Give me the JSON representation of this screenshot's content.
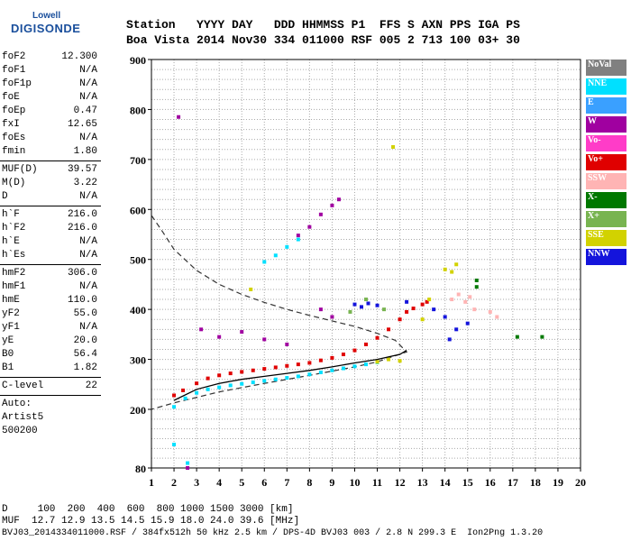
{
  "logo": {
    "top": "Lowell",
    "main": "DIGISONDE"
  },
  "header": {
    "line1": "Station   YYYY DAY   DDD HHMMSS P1  FFS S AXN PPS IGA PS",
    "line2": "Boa Vista 2014 Nov30 334 011000 RSF 005 2 713 100 03+ 30"
  },
  "params": {
    "group1": [
      {
        "name": "foF2",
        "value": "12.300"
      },
      {
        "name": "foF1",
        "value": "N/A"
      },
      {
        "name": "foF1p",
        "value": "N/A"
      },
      {
        "name": "foE",
        "value": "N/A"
      },
      {
        "name": "foEp",
        "value": "0.47"
      },
      {
        "name": "fxI",
        "value": "12.65"
      },
      {
        "name": "foEs",
        "value": "N/A"
      },
      {
        "name": "fmin",
        "value": "1.80"
      }
    ],
    "group2": [
      {
        "name": "MUF(D)",
        "value": "39.57"
      },
      {
        "name": "M(D)",
        "value": "3.22"
      },
      {
        "name": "D",
        "value": "N/A"
      }
    ],
    "group3": [
      {
        "name": "h`F",
        "value": "216.0"
      },
      {
        "name": "h`F2",
        "value": "216.0"
      },
      {
        "name": "h`E",
        "value": "N/A"
      },
      {
        "name": "h`Es",
        "value": "N/A"
      }
    ],
    "group4": [
      {
        "name": "hmF2",
        "value": "306.0"
      },
      {
        "name": "hmF1",
        "value": "N/A"
      },
      {
        "name": "hmE",
        "value": "110.0"
      },
      {
        "name": "yF2",
        "value": "55.0"
      },
      {
        "name": "yF1",
        "value": "N/A"
      },
      {
        "name": "yE",
        "value": "20.0"
      },
      {
        "name": "B0",
        "value": "56.4"
      },
      {
        "name": "B1",
        "value": "1.82"
      }
    ],
    "group5": [
      {
        "name": "C-level",
        "value": "22"
      }
    ],
    "auto": [
      "Auto:",
      "Artist5",
      "500200"
    ]
  },
  "legend": [
    {
      "label": "NoVal",
      "bg": "#808080",
      "fg": "#ffffff"
    },
    {
      "label": "NNE",
      "bg": "#00e0ff",
      "fg": "#ffffff"
    },
    {
      "label": "E",
      "bg": "#3aa0ff",
      "fg": "#ffffff"
    },
    {
      "label": "W",
      "bg": "#a000a0",
      "fg": "#ffffff"
    },
    {
      "label": "Vo-",
      "bg": "#ff3cc8",
      "fg": "#ffffff"
    },
    {
      "label": "Vo+",
      "bg": "#e00000",
      "fg": "#ffffff"
    },
    {
      "label": "SSW",
      "bg": "#ffb4b4",
      "fg": "#ffffff"
    },
    {
      "label": "X-",
      "bg": "#007800",
      "fg": "#ffffff"
    },
    {
      "label": "X+",
      "bg": "#78b450",
      "fg": "#ffffff"
    },
    {
      "label": "SSE",
      "bg": "#d2d200",
      "fg": "#ffffff"
    },
    {
      "label": "NNW",
      "bg": "#1414dc",
      "fg": "#ffffff"
    }
  ],
  "footer": {
    "line1": "D     100  200  400  600  800 1000 1500 3000 [km]",
    "line2": "MUF  12.7 12.9 13.5 14.5 15.9 18.0 24.0 39.6 [MHz]",
    "line3": "BVJ03_2014334011000.RSF / 384fx512h 50 kHz 2.5 km / DPS-4D BVJ03 003 / 2.8 N 299.3 E  Ion2Png 1.3.20"
  },
  "chart_data": {
    "type": "scatter",
    "title": "",
    "xlabel": "",
    "ylabel": "",
    "xlim": [
      1,
      20
    ],
    "ylim": [
      80,
      900
    ],
    "x_ticks": [
      1,
      2,
      3,
      4,
      5,
      6,
      7,
      8,
      9,
      10,
      11,
      12,
      13,
      14,
      15,
      16,
      17,
      18,
      19,
      20
    ],
    "y_ticks": [
      80,
      200,
      300,
      400,
      500,
      600,
      700,
      800,
      900
    ],
    "grid": true,
    "series": [
      {
        "name": "Vo+",
        "color": "#e00000",
        "points": [
          [
            2.0,
            228
          ],
          [
            2.4,
            238
          ],
          [
            3.0,
            252
          ],
          [
            3.5,
            262
          ],
          [
            4.0,
            268
          ],
          [
            4.5,
            272
          ],
          [
            5.0,
            275
          ],
          [
            5.5,
            278
          ],
          [
            6.0,
            281
          ],
          [
            6.5,
            284
          ],
          [
            7.0,
            287
          ],
          [
            7.5,
            290
          ],
          [
            8.0,
            293
          ],
          [
            8.5,
            298
          ],
          [
            9.0,
            303
          ],
          [
            9.5,
            310
          ],
          [
            10.0,
            318
          ],
          [
            10.5,
            330
          ],
          [
            11.0,
            343
          ],
          [
            11.5,
            360
          ],
          [
            12.0,
            380
          ],
          [
            12.3,
            395
          ],
          [
            12.6,
            402
          ],
          [
            13.0,
            410
          ],
          [
            13.2,
            415
          ]
        ]
      },
      {
        "name": "NNE",
        "color": "#00e0ff",
        "points": [
          [
            2.0,
            205
          ],
          [
            2.5,
            222
          ],
          [
            3.0,
            233
          ],
          [
            3.5,
            240
          ],
          [
            4.0,
            244
          ],
          [
            4.5,
            248
          ],
          [
            5.0,
            251
          ],
          [
            5.5,
            254
          ],
          [
            6.0,
            257
          ],
          [
            6.5,
            260
          ],
          [
            7.0,
            263
          ],
          [
            7.5,
            266
          ],
          [
            8.0,
            270
          ],
          [
            8.5,
            274
          ],
          [
            9.0,
            278
          ],
          [
            9.5,
            282
          ],
          [
            10.0,
            286
          ],
          [
            10.5,
            290
          ],
          [
            11.0,
            294
          ],
          [
            6.0,
            495
          ],
          [
            6.5,
            508
          ],
          [
            7.0,
            525
          ],
          [
            7.5,
            540
          ],
          [
            2.0,
            128
          ],
          [
            2.6,
            90
          ]
        ]
      },
      {
        "name": "W",
        "color": "#a000a0",
        "points": [
          [
            2.2,
            785
          ],
          [
            2.6,
            80
          ],
          [
            3.2,
            360
          ],
          [
            4.0,
            345
          ],
          [
            5.0,
            355
          ],
          [
            6.0,
            340
          ],
          [
            7.0,
            330
          ],
          [
            7.5,
            548
          ],
          [
            8.0,
            565
          ],
          [
            8.5,
            590
          ],
          [
            9.0,
            608
          ],
          [
            9.3,
            620
          ],
          [
            8.5,
            400
          ],
          [
            9.0,
            385
          ]
        ]
      },
      {
        "name": "SSE",
        "color": "#d2d200",
        "points": [
          [
            11.0,
            295
          ],
          [
            11.5,
            300
          ],
          [
            12.0,
            297
          ],
          [
            13.0,
            380
          ],
          [
            13.3,
            420
          ],
          [
            14.0,
            480
          ],
          [
            14.5,
            490
          ],
          [
            14.3,
            475
          ],
          [
            11.7,
            725
          ],
          [
            5.4,
            440
          ]
        ]
      },
      {
        "name": "NNW",
        "color": "#1414dc",
        "points": [
          [
            10.0,
            410
          ],
          [
            10.3,
            405
          ],
          [
            10.6,
            412
          ],
          [
            11.0,
            408
          ],
          [
            12.3,
            415
          ],
          [
            13.5,
            400
          ],
          [
            14.0,
            385
          ],
          [
            15.0,
            372
          ],
          [
            14.5,
            360
          ],
          [
            14.2,
            340
          ]
        ]
      },
      {
        "name": "SSW",
        "color": "#ffb4b4",
        "points": [
          [
            14.3,
            420
          ],
          [
            14.6,
            430
          ],
          [
            14.9,
            415
          ],
          [
            15.1,
            425
          ],
          [
            15.3,
            400
          ],
          [
            16.0,
            395
          ],
          [
            16.3,
            385
          ]
        ]
      },
      {
        "name": "X-",
        "color": "#007800",
        "points": [
          [
            15.4,
            458
          ],
          [
            15.4,
            445
          ],
          [
            17.2,
            345
          ],
          [
            18.3,
            345
          ]
        ]
      },
      {
        "name": "X+",
        "color": "#78b450",
        "points": [
          [
            10.5,
            420
          ],
          [
            11.3,
            400
          ],
          [
            9.8,
            395
          ]
        ]
      }
    ],
    "profile_curve": [
      [
        2.0,
        218
      ],
      [
        3.0,
        240
      ],
      [
        4.0,
        252
      ],
      [
        5.0,
        260
      ],
      [
        6.0,
        266
      ],
      [
        7.0,
        272
      ],
      [
        8.0,
        278
      ],
      [
        9.0,
        285
      ],
      [
        10.0,
        293
      ],
      [
        11.0,
        300
      ],
      [
        12.0,
        310
      ],
      [
        12.3,
        318
      ]
    ],
    "dashed_curve": [
      [
        1.0,
        588
      ],
      [
        1.5,
        555
      ],
      [
        2.0,
        520
      ],
      [
        3.0,
        478
      ],
      [
        4.0,
        450
      ],
      [
        5.0,
        430
      ],
      [
        6.0,
        414
      ],
      [
        7.0,
        400
      ],
      [
        8.0,
        388
      ],
      [
        9.0,
        377
      ],
      [
        10.0,
        366
      ],
      [
        11.0,
        352
      ],
      [
        11.8,
        338
      ],
      [
        12.3,
        315
      ],
      [
        11.0,
        295
      ],
      [
        10.0,
        285
      ],
      [
        8.0,
        268
      ],
      [
        6.0,
        252
      ],
      [
        4.0,
        235
      ],
      [
        2.0,
        213
      ],
      [
        1.0,
        200
      ]
    ]
  }
}
